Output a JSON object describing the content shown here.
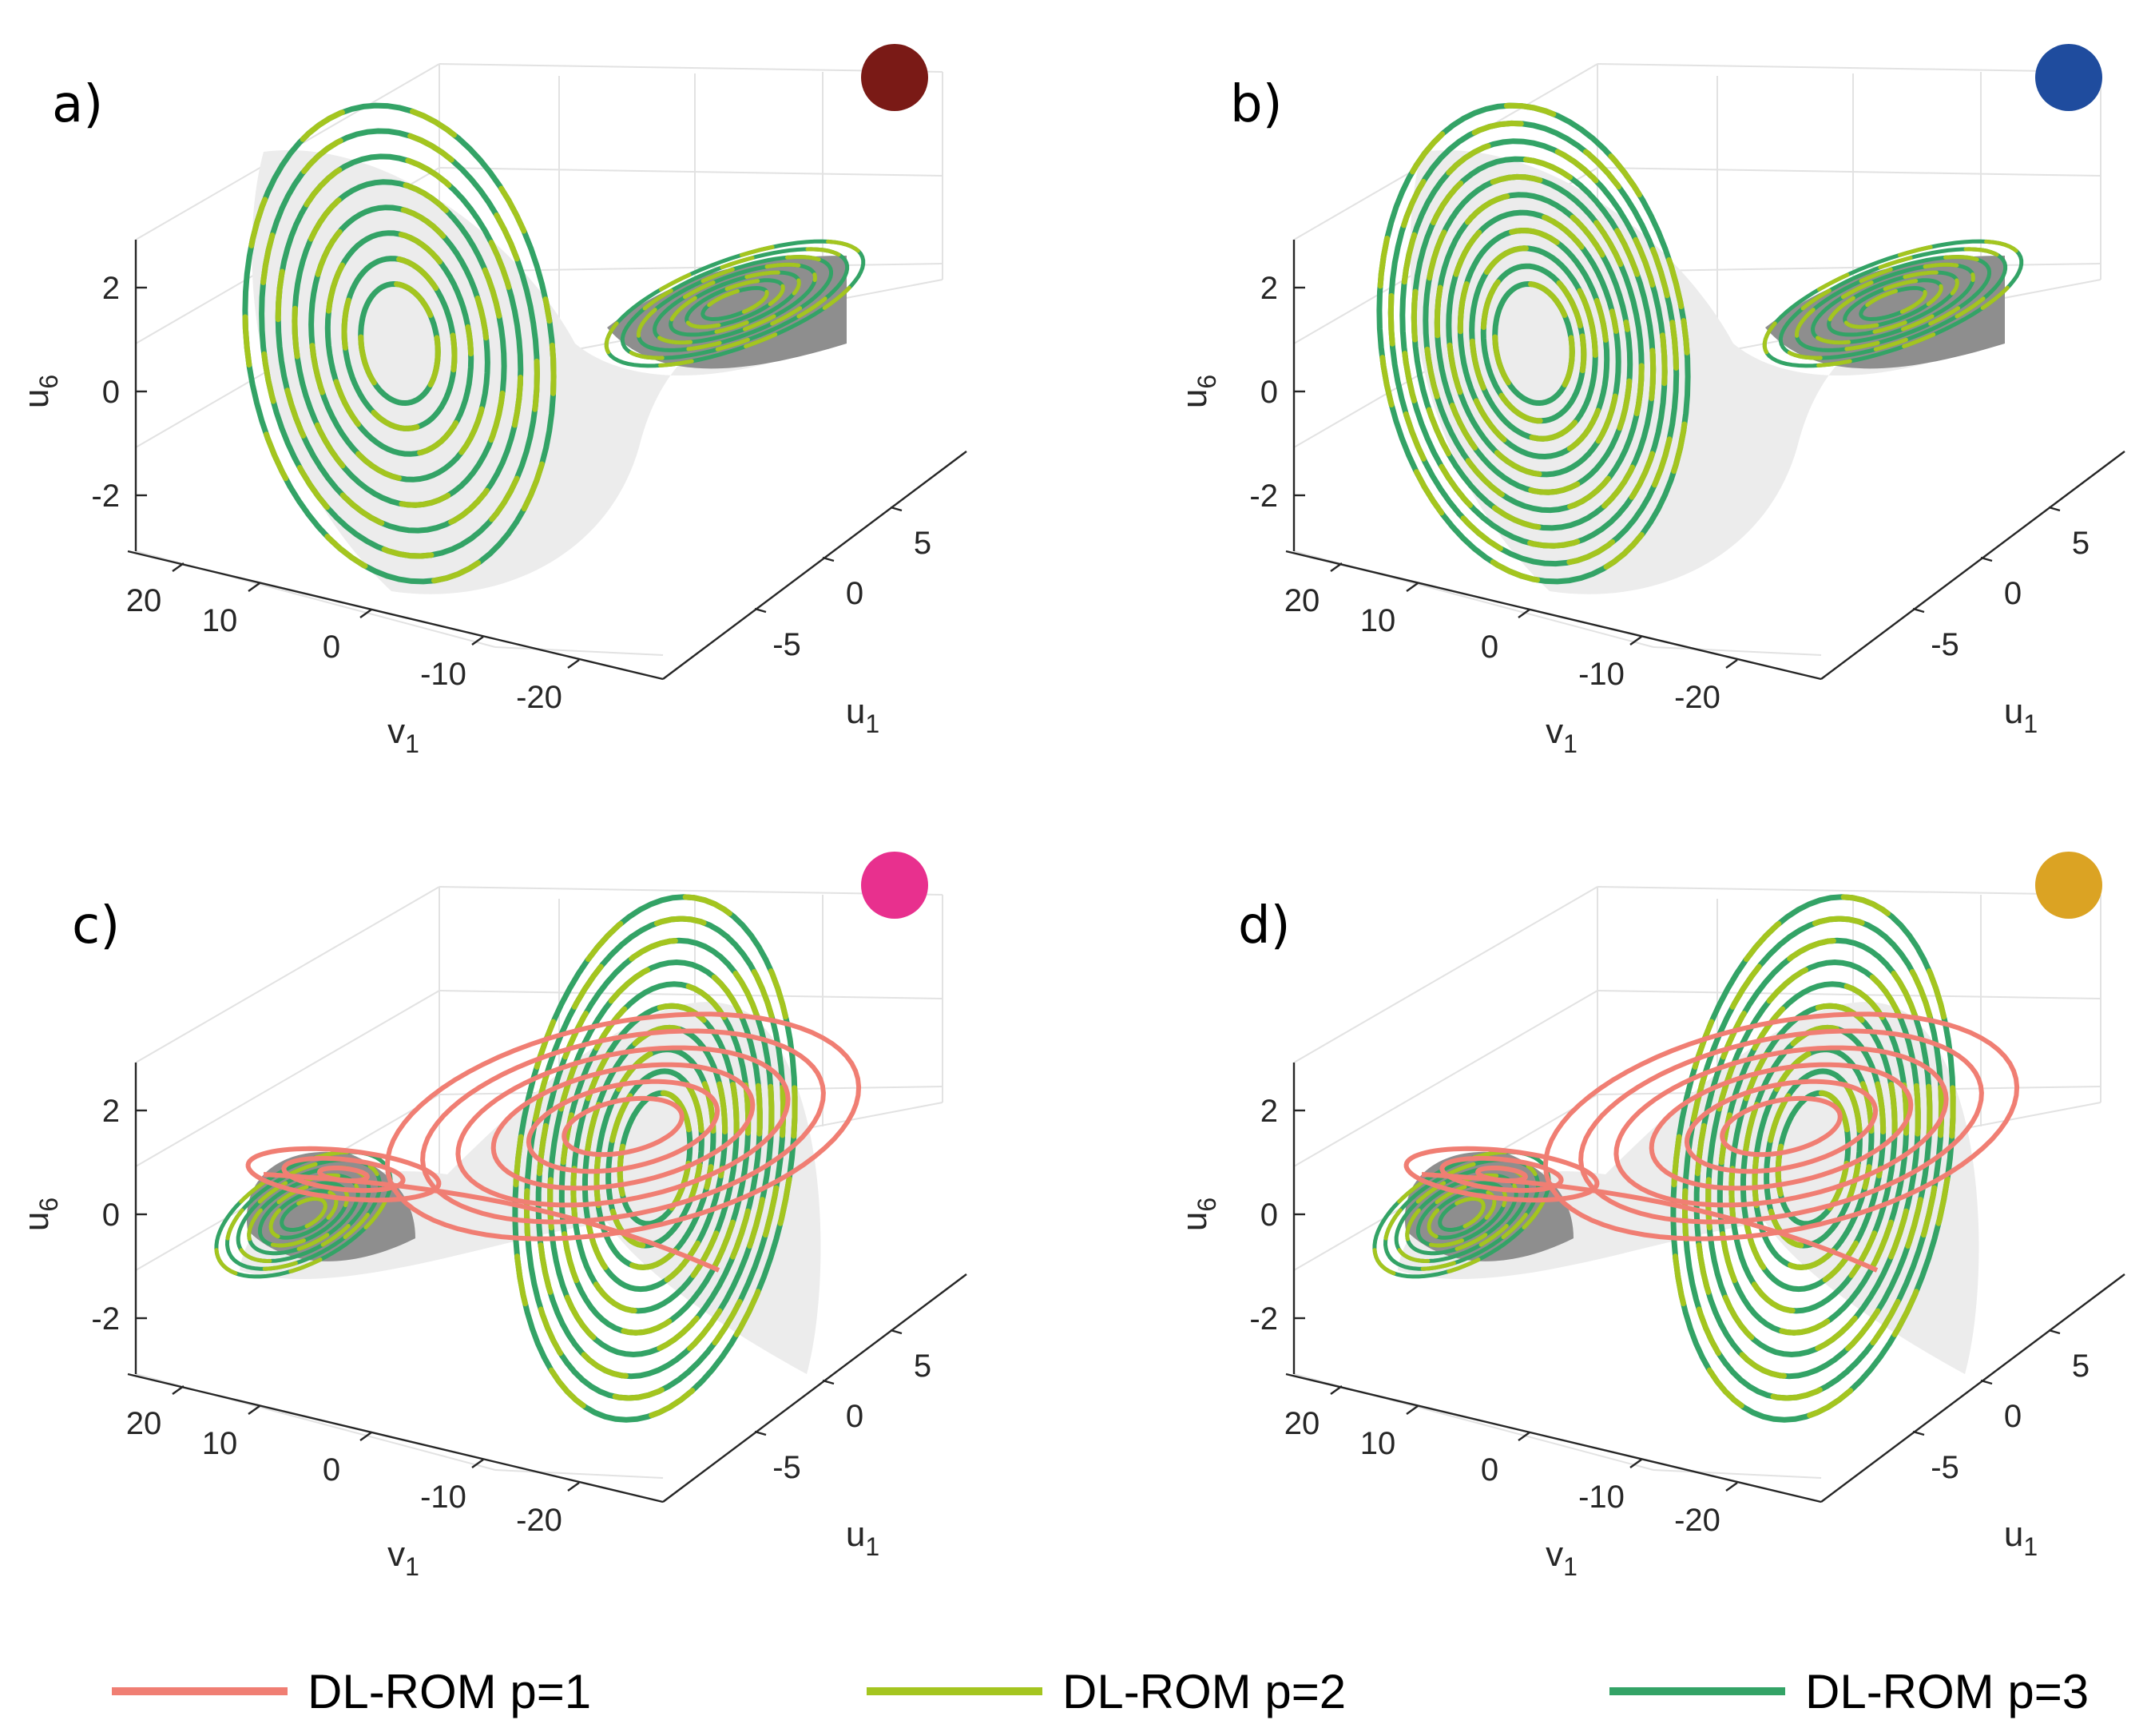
{
  "chart_data": {
    "type": "line3d",
    "description_free": true,
    "panels": [
      {
        "label": "a)",
        "color": "#7a1a16",
        "view": "ab",
        "showP1": false
      },
      {
        "label": "b)",
        "color": "#1f4c9e",
        "view": "ab",
        "showP1": false
      },
      {
        "label": "c)",
        "color": "#e8308e",
        "view": "cd",
        "showP1": true
      },
      {
        "label": "d)",
        "color": "#dba323",
        "view": "cd",
        "showP1": true
      }
    ],
    "axes": {
      "z": {
        "label": "u",
        "sub": "6",
        "ticks": [
          "2",
          "0",
          "-2"
        ],
        "values": [
          2,
          0,
          -2
        ],
        "lim": [
          -3,
          3
        ]
      },
      "x": {
        "label": "v",
        "sub": "1",
        "ticks": [
          "20",
          "10",
          "0",
          "-10",
          "-20"
        ],
        "values": [
          20,
          10,
          0,
          -10,
          -20
        ],
        "lim": [
          -25,
          25
        ]
      },
      "y": {
        "label": "u",
        "sub": "1",
        "ticks": [
          "5",
          "0",
          "-5"
        ],
        "values": [
          5,
          0,
          -5
        ],
        "lim": [
          -8,
          8
        ]
      }
    },
    "series": [
      {
        "name": "DL-ROM p=1",
        "color": "#f07e73"
      },
      {
        "name": "DL-ROM p=2",
        "color": "#a4c51f"
      },
      {
        "name": "DL-ROM p=3",
        "color": "#33a366"
      }
    ]
  }
}
